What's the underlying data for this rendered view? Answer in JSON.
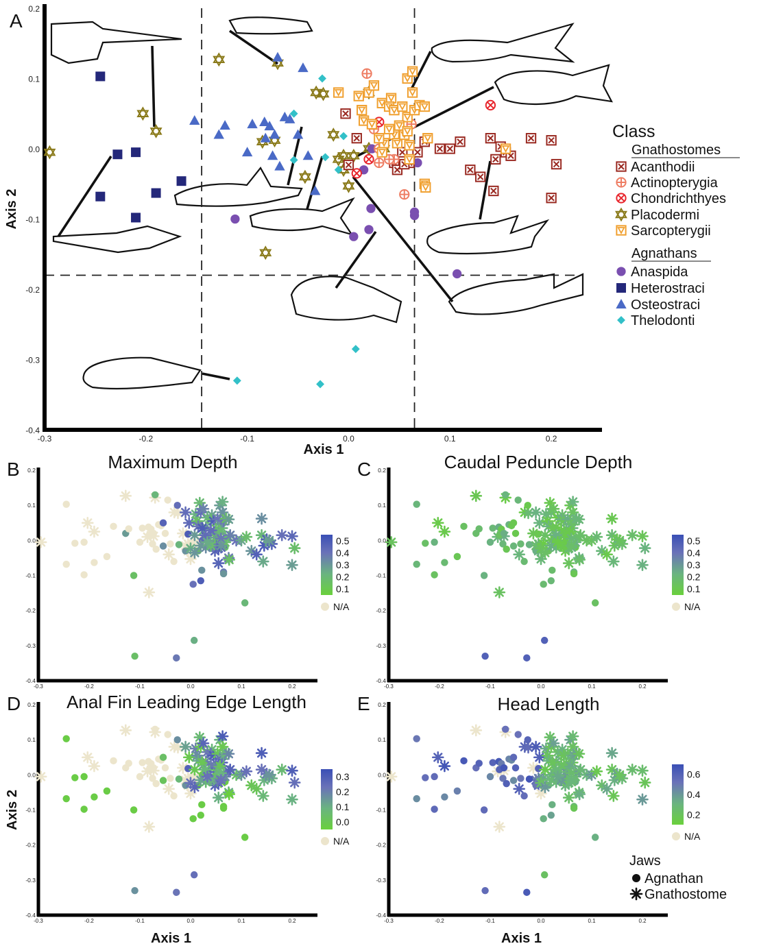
{
  "figure": {
    "panels_text": {
      "A": {
        "label": "A",
        "xlabel": "Axis 1",
        "ylabel": "Axis 2"
      }
    }
  },
  "legend_class": {
    "title": "Class",
    "group_gnathostomes": "Gnathostomes",
    "group_agnathans": "Agnathans",
    "entries": [
      {
        "name": "Acanthodii",
        "marker": "boxed-x",
        "color": "#9a2a22"
      },
      {
        "name": "Actinopterygia",
        "marker": "circle-plus",
        "color": "#ee7d63"
      },
      {
        "name": "Chondrichthyes",
        "marker": "circle-x",
        "color": "#e8252c"
      },
      {
        "name": "Placodermi",
        "marker": "hexagram",
        "color": "#8a7a1a"
      },
      {
        "name": "Sarcopterygii",
        "marker": "boxed-tri",
        "color": "#f0a030"
      },
      {
        "name": "Anaspida",
        "marker": "circle",
        "color": "#7a4fb0"
      },
      {
        "name": "Heterostraci",
        "marker": "square",
        "color": "#24287a"
      },
      {
        "name": "Osteostraci",
        "marker": "triangle",
        "color": "#4a6ac6"
      },
      {
        "name": "Thelodonti",
        "marker": "diamond",
        "color": "#32c0c8"
      }
    ]
  },
  "legend_jaws": {
    "title": "Jaws",
    "agnathan": "Agnathan",
    "gnathostome": "Gnathostome"
  },
  "colorbar_na": "N/A",
  "chart_data": [
    {
      "panel": "A",
      "type": "scatter",
      "xlabel": "Axis 1",
      "ylabel": "Axis 2",
      "xlim": [
        -0.3,
        0.25
      ],
      "ylim": [
        -0.4,
        0.2
      ],
      "xticks": [
        "-0.3",
        "-0.2",
        "-0.1",
        "0.0",
        "0.1",
        "0.2"
      ],
      "yticks": [
        "-0.4",
        "-0.3",
        "-0.2",
        "-0.1",
        "0.0",
        "0.1",
        "0.2"
      ],
      "reference_lines": {
        "x": [
          -0.145,
          0.065
        ],
        "y": [
          -0.18
        ]
      },
      "series": [
        {
          "name": "Heterostraci",
          "points": [
            [
              -0.245,
              0.103
            ],
            [
              -0.21,
              -0.005
            ],
            [
              -0.19,
              -0.063
            ],
            [
              -0.165,
              -0.046
            ],
            [
              -0.228,
              -0.008
            ],
            [
              -0.245,
              -0.068
            ],
            [
              -0.21,
              -0.098
            ]
          ]
        },
        {
          "name": "Placodermi",
          "points": [
            [
              -0.295,
              -0.005
            ],
            [
              -0.203,
              0.05
            ],
            [
              -0.19,
              0.025
            ],
            [
              -0.128,
              0.127
            ],
            [
              -0.07,
              0.122
            ],
            [
              -0.082,
              -0.148
            ],
            [
              -0.085,
              0.01
            ],
            [
              -0.073,
              0.012
            ],
            [
              -0.032,
              0.08
            ],
            [
              -0.025,
              0.078
            ],
            [
              -0.043,
              -0.04
            ],
            [
              -0.015,
              0.02
            ],
            [
              -0.01,
              -0.015
            ],
            [
              -0.005,
              -0.03
            ],
            [
              0.0,
              -0.053
            ],
            [
              -0.005,
              -0.01
            ],
            [
              0.005,
              -0.01
            ],
            [
              0.02,
              0.0
            ],
            [
              0.02,
              0.08
            ],
            [
              0.035,
              0.0
            ]
          ]
        },
        {
          "name": "Osteostraci",
          "points": [
            [
              -0.152,
              0.04
            ],
            [
              -0.128,
              0.02
            ],
            [
              -0.122,
              0.033
            ],
            [
              -0.1,
              -0.005
            ],
            [
              -0.095,
              0.035
            ],
            [
              -0.083,
              0.038
            ],
            [
              -0.078,
              0.032
            ],
            [
              -0.082,
              0.015
            ],
            [
              -0.073,
              0.02
            ],
            [
              -0.063,
              0.045
            ],
            [
              -0.058,
              0.042
            ],
            [
              -0.07,
              0.13
            ],
            [
              -0.045,
              0.115
            ],
            [
              -0.075,
              -0.01
            ],
            [
              -0.068,
              -0.025
            ],
            [
              -0.033,
              -0.06
            ],
            [
              -0.05,
              0.02
            ],
            [
              -0.04,
              -0.01
            ]
          ]
        },
        {
          "name": "Thelodonti",
          "points": [
            [
              -0.054,
              0.05
            ],
            [
              -0.026,
              0.1
            ],
            [
              -0.023,
              -0.012
            ],
            [
              -0.054,
              -0.016
            ],
            [
              -0.005,
              0.018
            ],
            [
              0.013,
              0.052
            ],
            [
              0.007,
              -0.285
            ],
            [
              -0.028,
              -0.335
            ],
            [
              -0.11,
              -0.33
            ],
            [
              -0.01,
              -0.03
            ]
          ]
        },
        {
          "name": "Anaspida",
          "points": [
            [
              -0.112,
              -0.1
            ],
            [
              0.005,
              -0.125
            ],
            [
              0.02,
              -0.115
            ],
            [
              0.022,
              -0.085
            ],
            [
              0.023,
              0.0
            ],
            [
              0.065,
              -0.09
            ],
            [
              0.068,
              -0.02
            ],
            [
              0.107,
              -0.178
            ],
            [
              0.065,
              -0.095
            ],
            [
              0.015,
              -0.03
            ]
          ]
        },
        {
          "name": "Acanthodii",
          "points": [
            [
              0.008,
              0.015
            ],
            [
              -0.003,
              0.05
            ],
            [
              0.0,
              -0.023
            ],
            [
              0.045,
              -0.02
            ],
            [
              0.048,
              -0.03
            ],
            [
              0.053,
              -0.005
            ],
            [
              0.06,
              -0.02
            ],
            [
              0.068,
              -0.005
            ],
            [
              0.075,
              0.01
            ],
            [
              0.09,
              0.0
            ],
            [
              0.1,
              0.0
            ],
            [
              0.11,
              0.01
            ],
            [
              0.12,
              -0.03
            ],
            [
              0.13,
              -0.04
            ],
            [
              0.14,
              0.015
            ],
            [
              0.145,
              -0.015
            ],
            [
              0.15,
              0.003
            ],
            [
              0.155,
              -0.005
            ],
            [
              0.16,
              -0.01
            ],
            [
              0.18,
              0.015
            ],
            [
              0.2,
              0.012
            ],
            [
              0.205,
              -0.022
            ],
            [
              0.2,
              -0.07
            ],
            [
              0.143,
              -0.06
            ],
            [
              0.055,
              -0.022
            ]
          ]
        },
        {
          "name": "Actinopterygia",
          "points": [
            [
              0.018,
              0.107
            ],
            [
              0.03,
              0.0
            ],
            [
              0.045,
              -0.015
            ],
            [
              0.055,
              -0.065
            ],
            [
              0.025,
              0.028
            ],
            [
              0.062,
              0.035
            ],
            [
              0.03,
              -0.02
            ],
            [
              0.04,
              -0.015
            ]
          ]
        },
        {
          "name": "Chondrichthyes",
          "points": [
            [
              0.008,
              -0.035
            ],
            [
              0.03,
              0.038
            ],
            [
              0.14,
              0.062
            ],
            [
              0.02,
              -0.015
            ]
          ]
        },
        {
          "name": "Sarcopterygii",
          "points": [
            [
              -0.01,
              0.08
            ],
            [
              0.01,
              0.075
            ],
            [
              0.013,
              0.055
            ],
            [
              0.02,
              0.08
            ],
            [
              0.025,
              0.09
            ],
            [
              0.033,
              0.065
            ],
            [
              0.042,
              0.072
            ],
            [
              0.04,
              0.06
            ],
            [
              0.045,
              0.055
            ],
            [
              0.053,
              0.06
            ],
            [
              0.058,
              0.045
            ],
            [
              0.058,
              0.1
            ],
            [
              0.063,
              0.11
            ],
            [
              0.063,
              0.08
            ],
            [
              0.065,
              0.055
            ],
            [
              0.07,
              0.062
            ],
            [
              0.075,
              0.06
            ],
            [
              0.078,
              0.015
            ],
            [
              0.05,
              0.033
            ],
            [
              0.045,
              0.02
            ],
            [
              0.048,
              0.008
            ],
            [
              0.055,
              0.02
            ],
            [
              0.058,
              0.025
            ],
            [
              0.015,
              0.04
            ],
            [
              0.023,
              0.035
            ],
            [
              0.04,
              0.028
            ],
            [
              0.035,
              0.008
            ],
            [
              0.03,
              0.015
            ],
            [
              0.033,
              -0.005
            ],
            [
              0.06,
              0.005
            ],
            [
              0.06,
              -0.015
            ],
            [
              0.075,
              -0.05
            ],
            [
              0.076,
              -0.055
            ],
            [
              0.155,
              0.0
            ]
          ]
        }
      ]
    },
    {
      "panel": "B",
      "type": "scatter",
      "title": "Maximum Depth",
      "xlim": [
        -0.3,
        0.25
      ],
      "ylim": [
        -0.4,
        0.2
      ],
      "colorbar": {
        "ticks": [
          "0.5",
          "0.4",
          "0.3",
          "0.2",
          "0.1"
        ],
        "max": 0.55,
        "min": 0.05
      }
    },
    {
      "panel": "C",
      "type": "scatter",
      "title": "Caudal Peduncle Depth",
      "xlim": [
        -0.3,
        0.25
      ],
      "ylim": [
        -0.4,
        0.2
      ],
      "colorbar": {
        "ticks": [
          "0.5",
          "0.4",
          "0.3",
          "0.2",
          "0.1"
        ],
        "max": 0.55,
        "min": 0.05
      }
    },
    {
      "panel": "D",
      "type": "scatter",
      "title": "Anal Fin Leading Edge Length",
      "xlabel": "Axis 1",
      "ylabel": "Axis 2",
      "xlim": [
        -0.3,
        0.25
      ],
      "ylim": [
        -0.4,
        0.2
      ],
      "colorbar": {
        "ticks": [
          "0.3",
          "0.2",
          "0.1",
          "0.0"
        ],
        "max": 0.35,
        "min": -0.05
      }
    },
    {
      "panel": "E",
      "type": "scatter",
      "title": "Head Length",
      "xlabel": "Axis 1",
      "xlim": [
        -0.3,
        0.25
      ],
      "ylim": [
        -0.4,
        0.2
      ],
      "colorbar": {
        "ticks": [
          "0.6",
          "0.4",
          "0.2"
        ],
        "max": 0.7,
        "min": 0.1
      }
    }
  ]
}
